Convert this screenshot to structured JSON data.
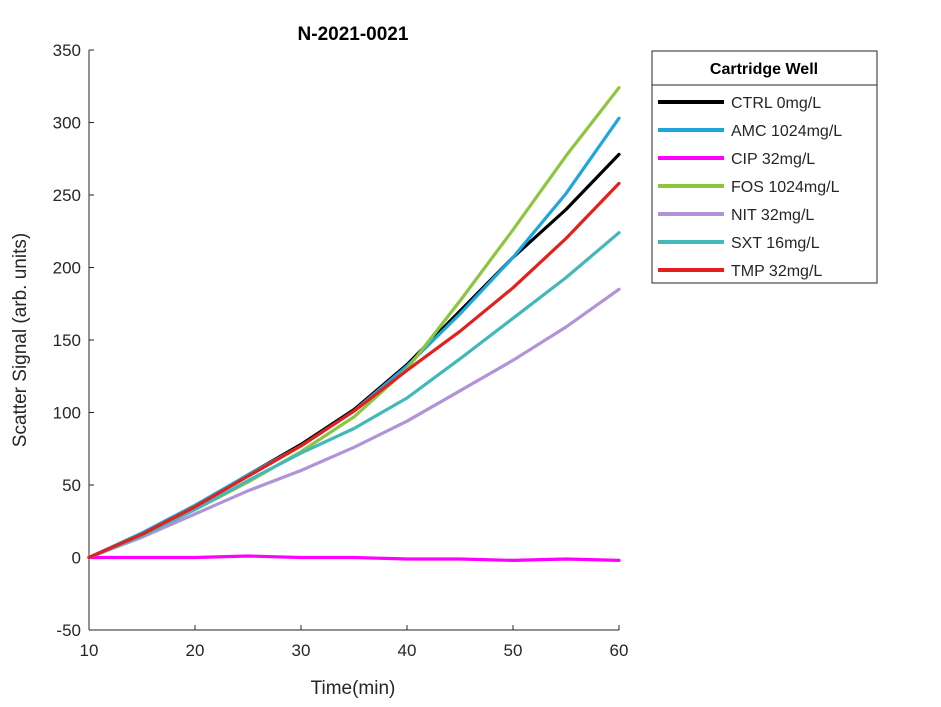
{
  "chart_data": {
    "type": "line",
    "title": "N-2021-0021",
    "xlabel": "Time(min)",
    "ylabel": "Scatter Signal (arb. units)",
    "xlim": [
      10,
      60
    ],
    "ylim": [
      -50,
      350
    ],
    "xticks": [
      10,
      20,
      30,
      40,
      50,
      60
    ],
    "yticks": [
      -50,
      0,
      50,
      100,
      150,
      200,
      250,
      300,
      350
    ],
    "grid": false,
    "legend": {
      "title": "Cartridge Well",
      "position": "outside-right"
    },
    "x": [
      10,
      15,
      20,
      25,
      30,
      35,
      40,
      45,
      50,
      55,
      60
    ],
    "series": [
      {
        "name": "CTRL 0mg/L",
        "color": "#000000",
        "values": [
          0,
          16,
          35,
          57,
          78,
          102,
          133,
          170,
          207,
          240,
          278
        ]
      },
      {
        "name": "AMC 1024mg/L",
        "color": "#1fa6dc",
        "values": [
          0,
          17,
          36,
          57,
          77,
          101,
          132,
          168,
          207,
          251,
          303
        ]
      },
      {
        "name": "CIP 32mg/L",
        "color": "#ff00ff",
        "values": [
          0,
          0,
          0,
          1,
          0,
          0,
          -1,
          -1,
          -2,
          -1,
          -2
        ]
      },
      {
        "name": "FOS 1024mg/L",
        "color": "#8cc63f",
        "values": [
          0,
          15,
          33,
          52,
          73,
          97,
          130,
          177,
          226,
          277,
          324
        ]
      },
      {
        "name": "NIT 32mg/L",
        "color": "#b093d8",
        "values": [
          0,
          14,
          30,
          46,
          60,
          76,
          94,
          115,
          136,
          159,
          185
        ]
      },
      {
        "name": "SXT 16mg/L",
        "color": "#43b8b8",
        "values": [
          0,
          15,
          33,
          53,
          72,
          89,
          110,
          137,
          165,
          193,
          224
        ]
      },
      {
        "name": "TMP 32mg/L",
        "color": "#e4201f",
        "values": [
          0,
          16,
          35,
          56,
          77,
          101,
          129,
          156,
          186,
          220,
          258
        ]
      }
    ]
  }
}
